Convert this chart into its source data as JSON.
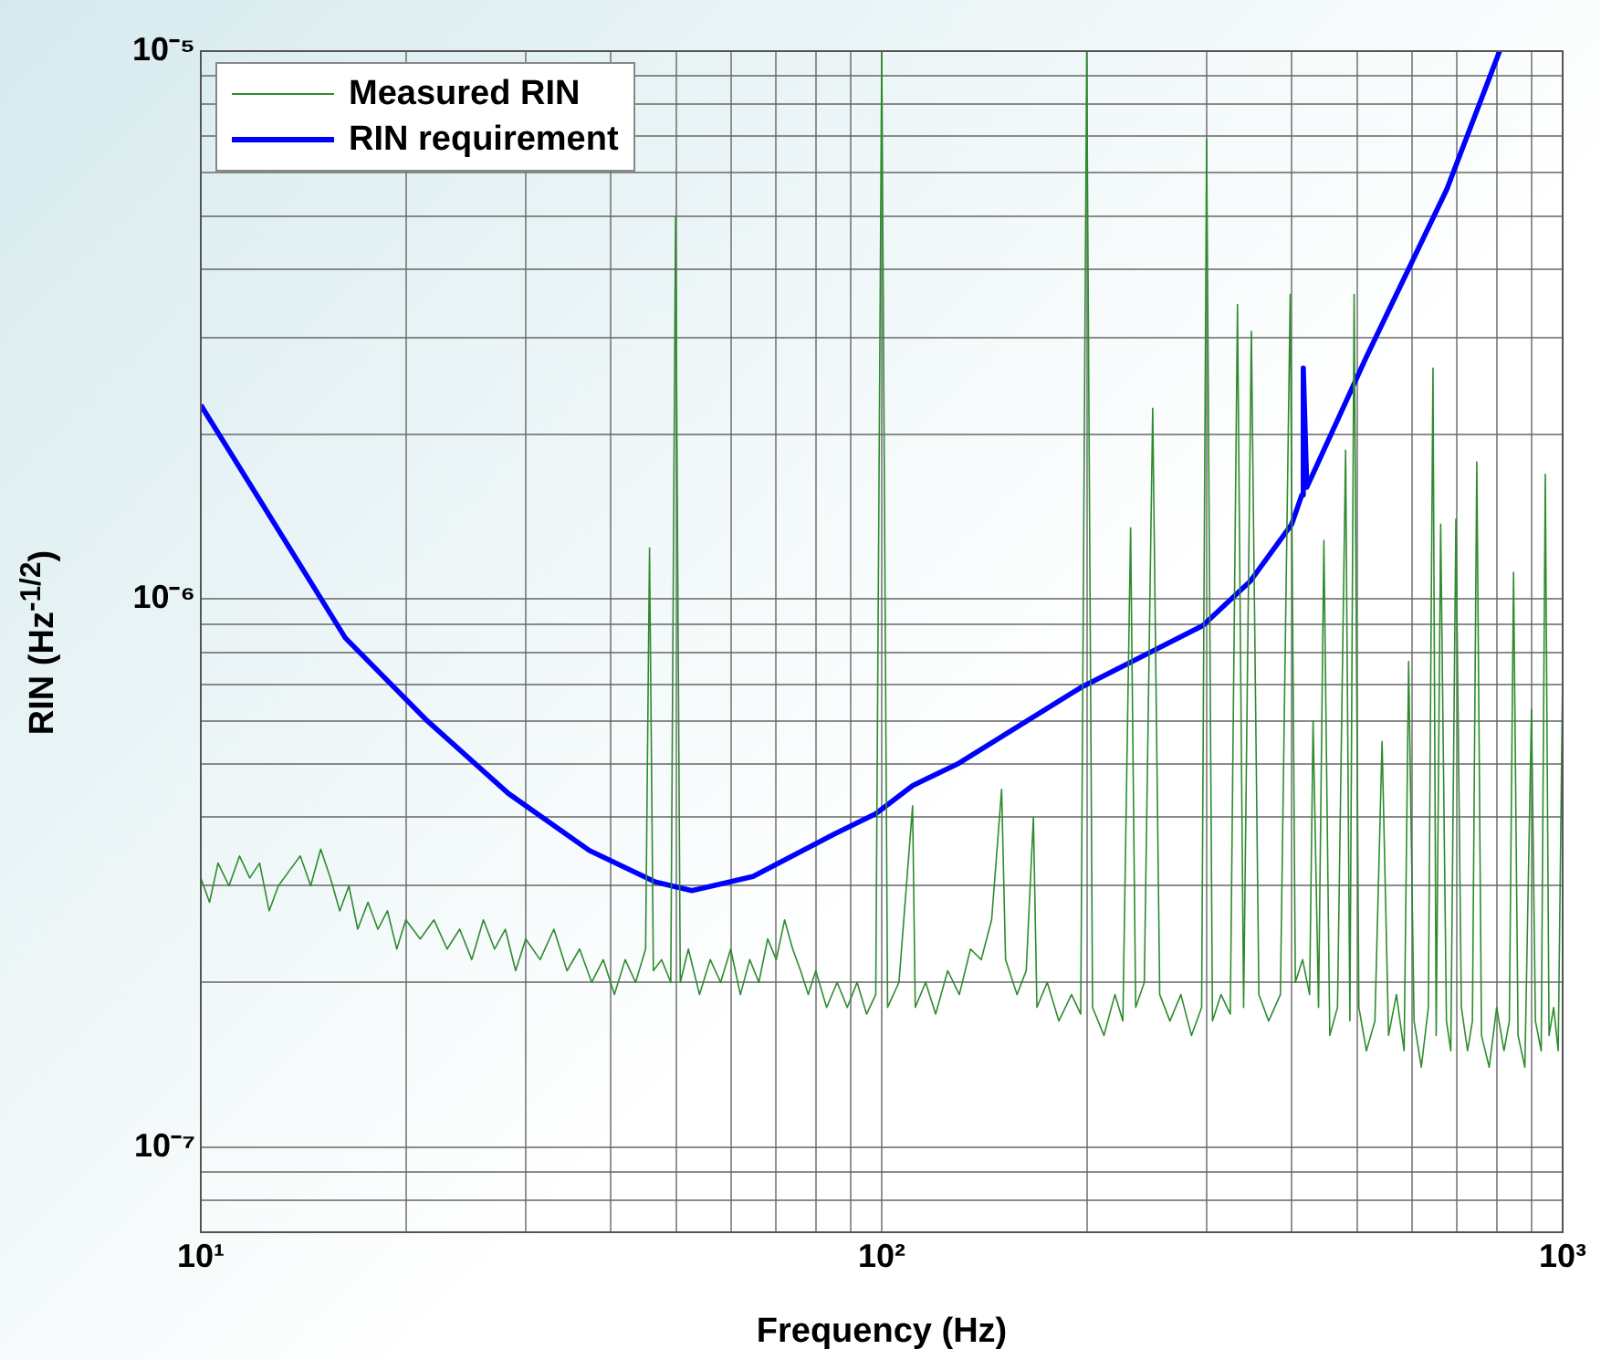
{
  "chart_data": {
    "type": "line",
    "xlabel": "Frequency (Hz)",
    "ylabel": "RIN (Hz$^{-1/2}$)",
    "log": "xy",
    "grid": true,
    "legend": "top left",
    "marker": "none",
    "line_style": "solid",
    "xlim": [
      10,
      1000
    ],
    "ylim": [
      7e-08,
      1e-05
    ],
    "xticks": [
      {
        "value": 10,
        "label": "10¹"
      },
      {
        "value": 20,
        "label": null
      },
      {
        "value": 30,
        "label": null
      },
      {
        "value": 40,
        "label": null
      },
      {
        "value": 50,
        "label": null
      },
      {
        "value": 60,
        "label": null
      },
      {
        "value": 70,
        "label": null
      },
      {
        "value": 80,
        "label": null
      },
      {
        "value": 90,
        "label": null
      },
      {
        "value": 100,
        "label": "10²"
      },
      {
        "value": 200,
        "label": null
      },
      {
        "value": 300,
        "label": null
      },
      {
        "value": 400,
        "label": null
      },
      {
        "value": 500,
        "label": null
      },
      {
        "value": 600,
        "label": null
      },
      {
        "value": 700,
        "label": null
      },
      {
        "value": 800,
        "label": null
      },
      {
        "value": 900,
        "label": null
      },
      {
        "value": 1000,
        "label": "10³"
      }
    ],
    "yticks": [
      {
        "value": 8e-08,
        "label": null
      },
      {
        "value": 9e-08,
        "label": null
      },
      {
        "value": 1e-07,
        "label": "10⁻⁷"
      },
      {
        "value": 2e-07,
        "label": null
      },
      {
        "value": 3e-07,
        "label": null
      },
      {
        "value": 4e-07,
        "label": null
      },
      {
        "value": 5e-07,
        "label": null
      },
      {
        "value": 6e-07,
        "label": null
      },
      {
        "value": 7e-07,
        "label": null
      },
      {
        "value": 8e-07,
        "label": null
      },
      {
        "value": 9e-07,
        "label": null
      },
      {
        "value": 1e-06,
        "label": "10⁻⁶"
      },
      {
        "value": 2e-06,
        "label": null
      },
      {
        "value": 3e-06,
        "label": null
      },
      {
        "value": 4e-06,
        "label": null
      },
      {
        "value": 5e-06,
        "label": null
      },
      {
        "value": 6e-06,
        "label": null
      },
      {
        "value": 7e-06,
        "label": null
      },
      {
        "value": 8e-06,
        "label": null
      },
      {
        "value": 9e-06,
        "label": null
      },
      {
        "value": 1e-05,
        "label": "10⁻⁵"
      }
    ],
    "series": [
      {
        "name": "Measured RIN",
        "color": "#2e8b2e",
        "x": [
          10,
          10.3,
          10.6,
          11,
          11.4,
          11.8,
          12.2,
          12.6,
          13,
          13.5,
          14,
          14.5,
          15,
          15.5,
          16,
          16.5,
          17,
          17.6,
          18.2,
          18.8,
          19.4,
          20,
          21,
          22,
          23,
          24,
          25,
          26,
          27,
          28,
          29,
          30,
          31.5,
          33,
          34.5,
          36,
          37.5,
          39,
          40.5,
          42,
          43.5,
          45,
          45.6,
          46.2,
          47.5,
          49,
          49.8,
          50.6,
          52,
          54,
          56,
          58,
          60,
          62,
          64,
          66,
          68,
          70,
          72,
          74,
          76,
          78,
          80,
          83,
          86,
          89,
          92,
          95,
          98,
          100,
          102,
          106,
          111,
          112,
          116,
          120,
          125,
          130,
          135,
          140,
          145,
          150,
          152,
          158,
          163,
          167,
          169,
          175,
          182,
          190,
          196,
          200,
          204,
          212,
          220,
          226,
          232,
          236,
          243,
          250,
          256,
          265,
          275,
          285,
          295,
          300,
          306,
          315,
          325,
          333,
          340,
          349,
          358,
          370,
          385,
          398,
          405,
          415,
          425,
          430,
          438,
          446,
          455,
          467,
          480,
          487,
          494,
          502,
          515,
          530,
          543,
          555,
          570,
          585,
          594,
          605,
          620,
          635,
          645,
          652,
          662,
          675,
          685,
          697,
          710,
          725,
          737,
          748,
          760,
          780,
          800,
          820,
          835,
          847,
          860,
          880,
          900,
          912,
          930,
          943,
          955,
          970,
          985,
          1000
        ],
        "values": [
          3.1e-07,
          2.8e-07,
          3.3e-07,
          3e-07,
          3.4e-07,
          3.1e-07,
          3.3e-07,
          2.7e-07,
          3e-07,
          3.2e-07,
          3.4e-07,
          3e-07,
          3.5e-07,
          3.1e-07,
          2.7e-07,
          3e-07,
          2.5e-07,
          2.8e-07,
          2.5e-07,
          2.7e-07,
          2.3e-07,
          2.6e-07,
          2.4e-07,
          2.6e-07,
          2.3e-07,
          2.5e-07,
          2.2e-07,
          2.6e-07,
          2.3e-07,
          2.5e-07,
          2.1e-07,
          2.4e-07,
          2.2e-07,
          2.5e-07,
          2.1e-07,
          2.3e-07,
          2e-07,
          2.2e-07,
          1.9e-07,
          2.2e-07,
          2e-07,
          2.3e-07,
          1.24e-06,
          2.1e-07,
          2.2e-07,
          2e-07,
          5e-06,
          2e-07,
          2.3e-07,
          1.9e-07,
          2.2e-07,
          2e-07,
          2.3e-07,
          1.9e-07,
          2.2e-07,
          2e-07,
          2.4e-07,
          2.2e-07,
          2.6e-07,
          2.3e-07,
          2.1e-07,
          1.9e-07,
          2.1e-07,
          1.8e-07,
          2e-07,
          1.8e-07,
          2e-07,
          1.75e-07,
          1.9e-07,
          1e-05,
          1.8e-07,
          2e-07,
          4.2e-07,
          1.8e-07,
          2e-07,
          1.75e-07,
          2.1e-07,
          1.9e-07,
          2.3e-07,
          2.2e-07,
          2.6e-07,
          4.5e-07,
          2.2e-07,
          1.9e-07,
          2.1e-07,
          4e-07,
          1.8e-07,
          2e-07,
          1.7e-07,
          1.9e-07,
          1.75e-07,
          1e-05,
          1.8e-07,
          1.6e-07,
          1.9e-07,
          1.7e-07,
          1.35e-06,
          1.8e-07,
          2e-07,
          2.23e-06,
          1.9e-07,
          1.7e-07,
          1.9e-07,
          1.6e-07,
          1.8e-07,
          6.9e-06,
          1.7e-07,
          1.9e-07,
          1.75e-07,
          3.45e-06,
          1.8e-07,
          3.08e-06,
          1.9e-07,
          1.7e-07,
          1.9e-07,
          3.6e-06,
          2e-07,
          2.2e-07,
          1.9e-07,
          6e-07,
          1.8e-07,
          1.28e-06,
          1.6e-07,
          1.8e-07,
          1.87e-06,
          1.7e-07,
          3.6e-06,
          1.8e-07,
          1.5e-07,
          1.7e-07,
          5.5e-07,
          1.6e-07,
          1.9e-07,
          1.5e-07,
          7.7e-07,
          1.7e-07,
          1.4e-07,
          1.8e-07,
          2.64e-06,
          1.6e-07,
          1.37e-06,
          1.7e-07,
          1.5e-07,
          1.4e-06,
          1.8e-07,
          1.5e-07,
          1.7e-07,
          1.78e-06,
          1.6e-07,
          1.4e-07,
          1.8e-07,
          1.5e-07,
          1.7e-07,
          1.12e-06,
          1.6e-07,
          1.4e-07,
          6.3e-07,
          1.7e-07,
          1.5e-07,
          1.69e-06,
          1.6e-07,
          1.8e-07,
          1.5e-07,
          7.4e-07
        ]
      },
      {
        "name": "RIN requirement",
        "color": "#0000ff",
        "x": [
          10,
          12.4,
          16.3,
          21.5,
          28.3,
          37.2,
          46.5,
          52.6,
          64.7,
          85.2,
          98,
          111,
          129,
          196,
          296,
          348,
          400,
          414,
          416,
          421,
          513,
          676,
          808
        ],
        "values": [
          2.26e-06,
          1.47e-06,
          8.5e-07,
          6e-07,
          4.42e-07,
          3.48e-07,
          3.05e-07,
          2.94e-07,
          3.12e-07,
          3.73e-07,
          4.06e-07,
          4.57e-07,
          5e-07,
          6.9e-07,
          8.95e-07,
          1.08e-06,
          1.37e-06,
          1.55e-06,
          2.64e-06,
          1.6e-06,
          2.74e-06,
          5.6e-06,
          1e-05
        ]
      }
    ]
  }
}
